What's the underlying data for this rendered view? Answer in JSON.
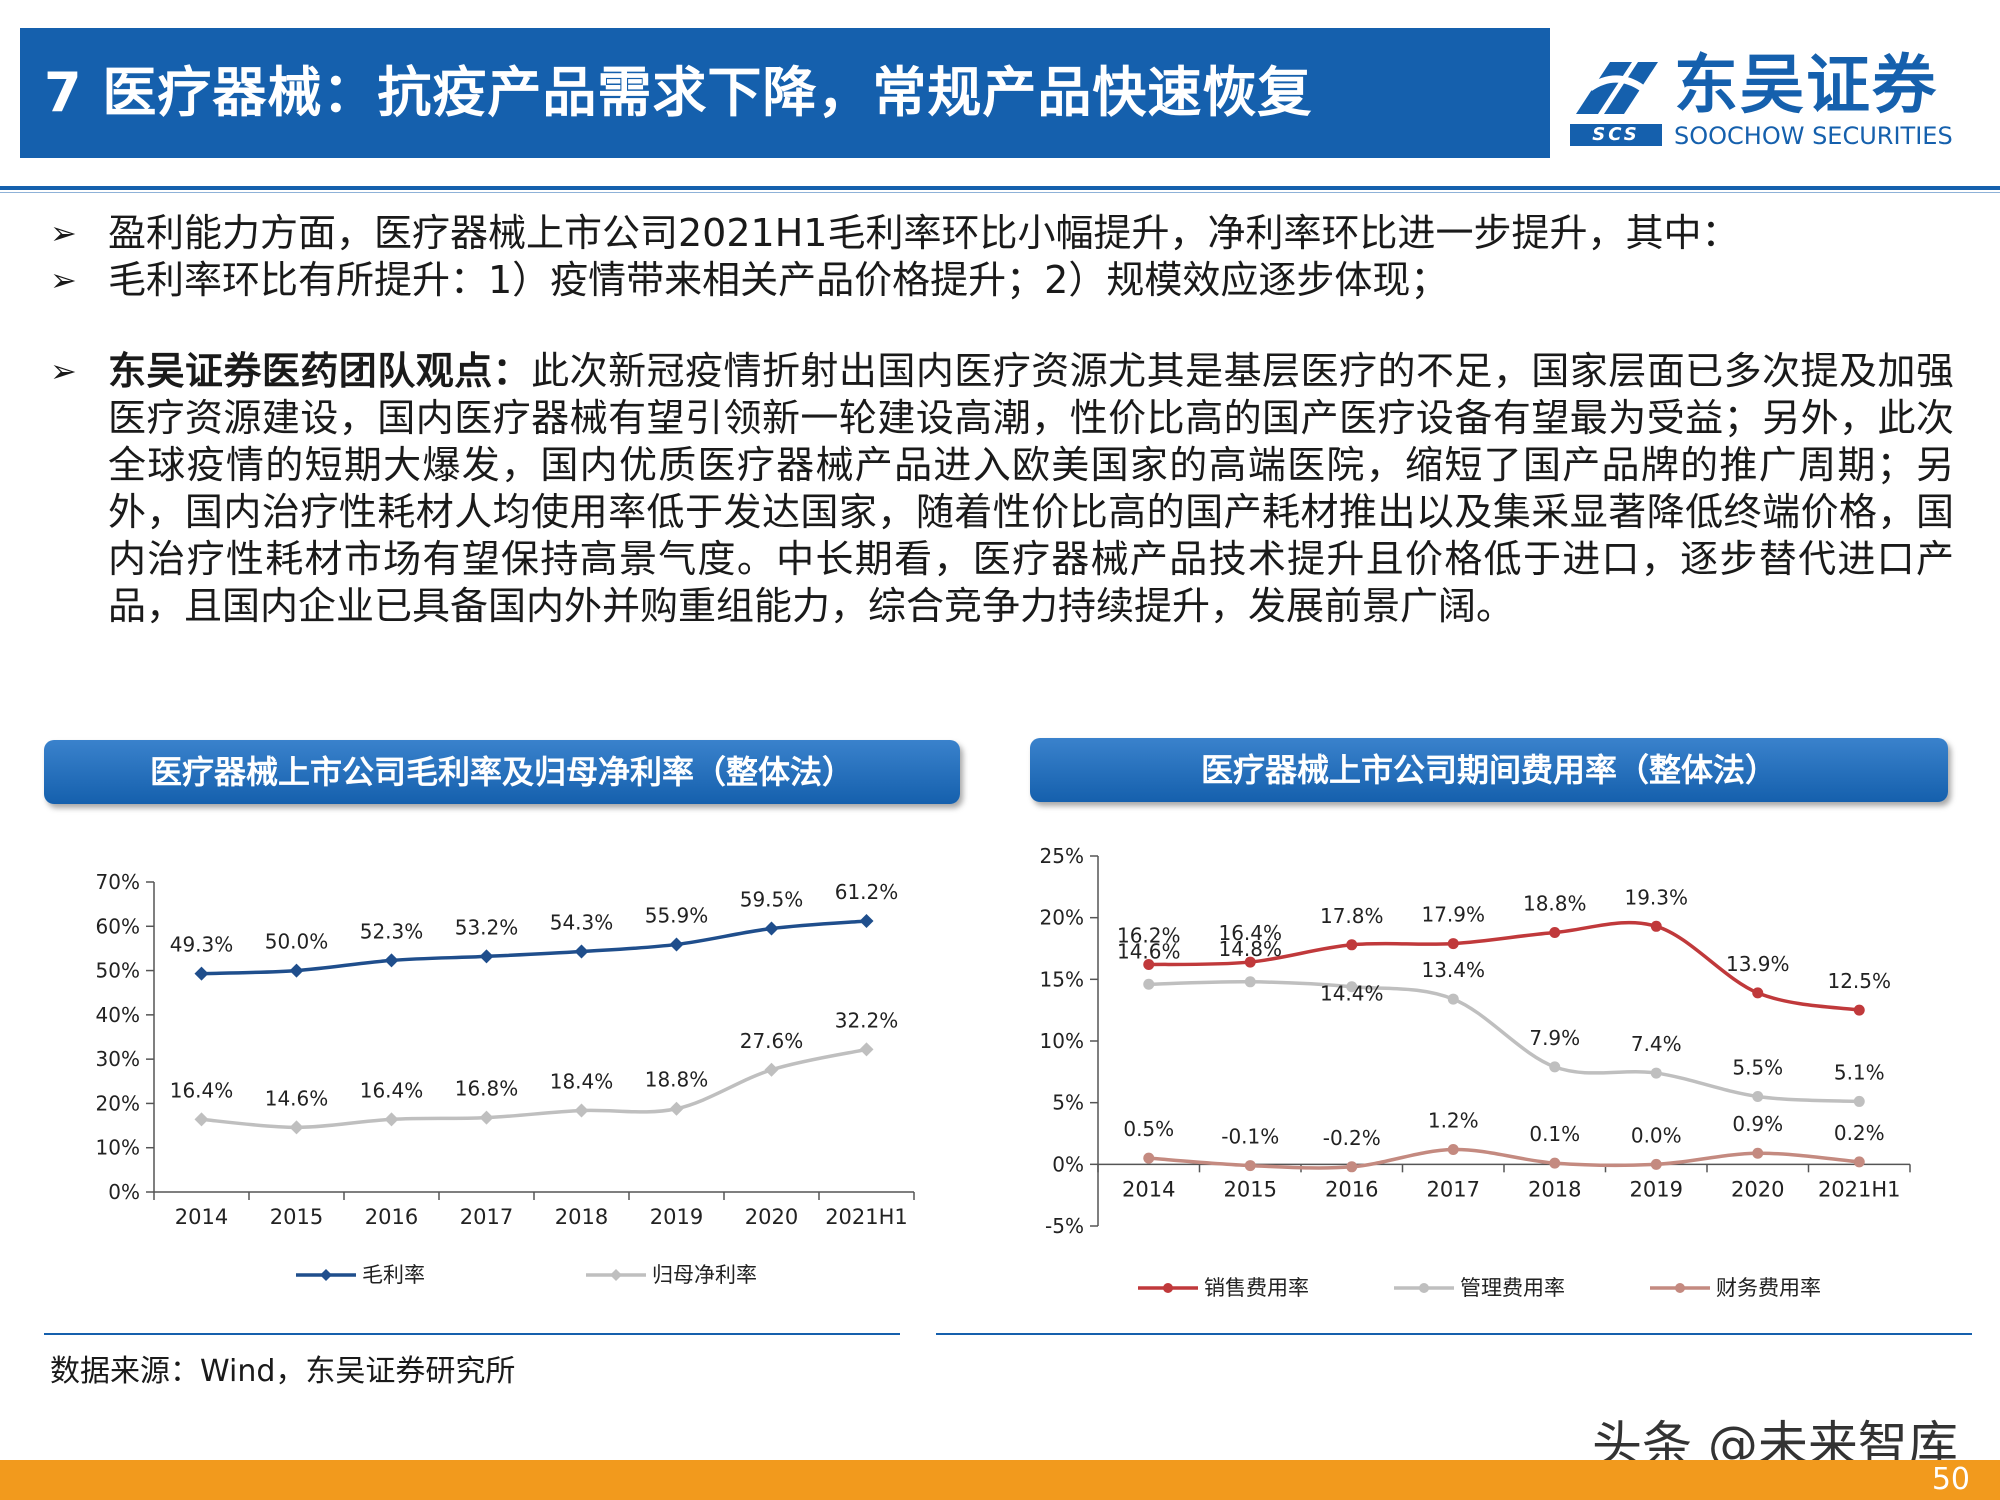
{
  "header": {
    "title": "7 医疗器械：抗疫产品需求下降，常规产品快速恢复",
    "brand_color": "#1560ad"
  },
  "logo": {
    "name_cn": "东吴证券",
    "name_en": "SOOCHOW SECURITIES",
    "abbr": "SCS"
  },
  "bullets": [
    {
      "marker": "➢",
      "lead": "",
      "text": "盈利能力方面，医疗器械上市公司2021H1毛利率环比小幅提升，净利率环比进一步提升，其中："
    },
    {
      "marker": "➢",
      "lead": "",
      "text": "毛利率环比有所提升：1）疫情带来相关产品价格提升；2）规模效应逐步体现；"
    },
    {
      "marker": "➢",
      "lead": "东吴证券医药团队观点：",
      "text": "此次新冠疫情折射出国内医疗资源尤其是基层医疗的不足，国家层面已多次提及加强医疗资源建设，国内医疗器械有望引领新一轮建设高潮，性价比高的国产医疗设备有望最为受益；另外，此次全球疫情的短期大爆发，国内优质医疗器械产品进入欧美国家的高端医院，缩短了国产品牌的推广周期；另外，国内治疗性耗材人均使用率低于发达国家，随着性价比高的国产耗材推出以及集采显著降低终端价格，国内治疗性耗材市场有望保持高景气度。中长期看，医疗器械产品技术提升且价格低于进口，逐步替代进口产品，且国内企业已具备国内外并购重组能力，综合竞争力持续提升，发展前景广阔。"
    }
  ],
  "chart_data": [
    {
      "type": "line",
      "title": "医疗器械上市公司毛利率及归母净利率（整体法）",
      "categories": [
        "2014",
        "2015",
        "2016",
        "2017",
        "2018",
        "2019",
        "2020",
        "2021H1"
      ],
      "yticks": [
        "0%",
        "10%",
        "20%",
        "30%",
        "40%",
        "50%",
        "60%",
        "70%"
      ],
      "ylim": [
        0,
        70
      ],
      "legend_position": "bottom",
      "grid": false,
      "series": [
        {
          "name": "毛利率",
          "color": "#1f4e8c",
          "marker": "diamond",
          "values": [
            49.3,
            50.0,
            52.3,
            53.2,
            54.3,
            55.9,
            59.5,
            61.2
          ],
          "labels": [
            "49.3%",
            "50.0%",
            "52.3%",
            "53.2%",
            "54.3%",
            "55.9%",
            "59.5%",
            "61.2%"
          ]
        },
        {
          "name": "归母净利率",
          "color": "#bfbfbf",
          "marker": "diamond",
          "values": [
            16.4,
            14.6,
            16.4,
            16.8,
            18.4,
            18.8,
            27.6,
            32.2
          ],
          "labels": [
            "16.4%",
            "14.6%",
            "16.4%",
            "16.8%",
            "18.4%",
            "18.8%",
            "27.6%",
            "32.2%"
          ]
        }
      ]
    },
    {
      "type": "line",
      "title": "医疗器械上市公司期间费用率（整体法）",
      "categories": [
        "2014",
        "2015",
        "2016",
        "2017",
        "2018",
        "2019",
        "2020",
        "2021H1"
      ],
      "yticks": [
        "-5%",
        "0%",
        "5%",
        "10%",
        "15%",
        "20%",
        "25%"
      ],
      "ylim": [
        -5,
        25
      ],
      "legend_position": "bottom",
      "grid": false,
      "series": [
        {
          "name": "销售费用率",
          "color": "#c0393b",
          "marker": "circle",
          "values": [
            16.2,
            16.4,
            17.8,
            17.9,
            18.8,
            19.3,
            13.9,
            12.5
          ],
          "labels": [
            "16.2%",
            "16.4%",
            "17.8%",
            "17.9%",
            "18.8%",
            "19.3%",
            "13.9%",
            "12.5%"
          ]
        },
        {
          "name": "管理费用率",
          "color": "#bfbfbf",
          "marker": "circle",
          "values": [
            14.6,
            14.8,
            14.4,
            13.4,
            7.9,
            7.4,
            5.5,
            5.1
          ],
          "labels": [
            "14.6%",
            "14.8%",
            "14.4%",
            "13.4%",
            "7.9%",
            "7.4%",
            "5.5%",
            "5.1%"
          ]
        },
        {
          "name": "财务费用率",
          "color": "#c48a80",
          "marker": "circle",
          "values": [
            0.5,
            -0.1,
            -0.2,
            1.2,
            0.1,
            0.0,
            0.9,
            0.2
          ],
          "labels": [
            "0.5%",
            "-0.1%",
            "-0.2%",
            "1.2%",
            "0.1%",
            "0.0%",
            "0.9%",
            "0.2%"
          ]
        }
      ]
    }
  ],
  "source": "数据来源：Wind，东吴证券研究所",
  "watermark": "头条 @未来智库",
  "page_number": "50",
  "footer_color": "#f29a1d"
}
